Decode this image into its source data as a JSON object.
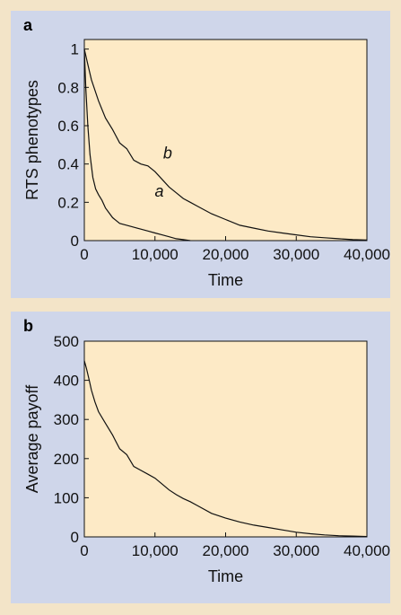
{
  "colors": {
    "page_background": "#f3e4c8",
    "panel_background": "#cfd6ea",
    "plot_background": "#fdeac6",
    "line": "#111111"
  },
  "panels": {
    "a": {
      "letter": "a"
    },
    "b": {
      "letter": "b"
    }
  },
  "chart_data": [
    {
      "type": "line",
      "panel": "a",
      "xlabel": "Time",
      "ylabel": "RTS phenotypes",
      "xlim": [
        0,
        40000
      ],
      "ylim": [
        0,
        1.05
      ],
      "xticks": [
        0,
        10000,
        20000,
        30000,
        40000
      ],
      "xtick_labels": [
        "0",
        "10,000",
        "20,000",
        "30,000",
        "40,000"
      ],
      "yticks": [
        0,
        0.2,
        0.4,
        0.6,
        0.8,
        1
      ],
      "ytick_labels": [
        "0",
        "0.2",
        "0.4",
        "0.6",
        "0.8",
        "1"
      ],
      "grid": false,
      "series": [
        {
          "name": "a",
          "x": [
            0,
            200,
            500,
            800,
            1200,
            1600,
            2000,
            2500,
            3000,
            4000,
            5000,
            6000,
            7000,
            8000,
            9000,
            10000,
            11000,
            12000,
            13000,
            14000,
            15000
          ],
          "y": [
            1.0,
            0.8,
            0.6,
            0.45,
            0.33,
            0.27,
            0.24,
            0.21,
            0.17,
            0.12,
            0.09,
            0.08,
            0.07,
            0.06,
            0.05,
            0.04,
            0.03,
            0.02,
            0.01,
            0.005,
            0.0
          ]
        },
        {
          "name": "b",
          "x": [
            0,
            500,
            1000,
            2000,
            3000,
            4000,
            5000,
            6000,
            7000,
            8000,
            9000,
            10000,
            11000,
            12000,
            13000,
            14000,
            15000,
            16000,
            18000,
            20000,
            22000,
            24000,
            26000,
            28000,
            30000,
            32000,
            34000,
            36000,
            38000,
            40000
          ],
          "y": [
            1.0,
            0.92,
            0.84,
            0.73,
            0.64,
            0.58,
            0.51,
            0.48,
            0.42,
            0.4,
            0.39,
            0.36,
            0.32,
            0.28,
            0.25,
            0.22,
            0.2,
            0.18,
            0.14,
            0.11,
            0.08,
            0.065,
            0.05,
            0.04,
            0.03,
            0.02,
            0.015,
            0.01,
            0.005,
            0.003
          ]
        }
      ]
    },
    {
      "type": "line",
      "panel": "b",
      "xlabel": "Time",
      "ylabel": "Average payoff",
      "xlim": [
        0,
        40000
      ],
      "ylim": [
        0,
        500
      ],
      "xticks": [
        0,
        10000,
        20000,
        30000,
        40000
      ],
      "xtick_labels": [
        "0",
        "10,000",
        "20,000",
        "30,000",
        "40,000"
      ],
      "yticks": [
        0,
        100,
        200,
        300,
        400,
        500
      ],
      "ytick_labels": [
        "0",
        "100",
        "200",
        "300",
        "400",
        "500"
      ],
      "grid": false,
      "series": [
        {
          "x": [
            0,
            300,
            700,
            1000,
            1500,
            2000,
            3000,
            4000,
            5000,
            6000,
            7000,
            8000,
            9000,
            10000,
            11000,
            12000,
            13000,
            14000,
            15000,
            16000,
            18000,
            20000,
            22000,
            24000,
            26000,
            28000,
            30000,
            32000,
            34000,
            36000,
            38000,
            40000
          ],
          "y": [
            450,
            430,
            400,
            375,
            345,
            320,
            290,
            260,
            225,
            210,
            180,
            170,
            160,
            150,
            135,
            120,
            108,
            98,
            90,
            80,
            60,
            48,
            38,
            30,
            24,
            18,
            12,
            8,
            5,
            3,
            2,
            1
          ]
        }
      ]
    }
  ]
}
